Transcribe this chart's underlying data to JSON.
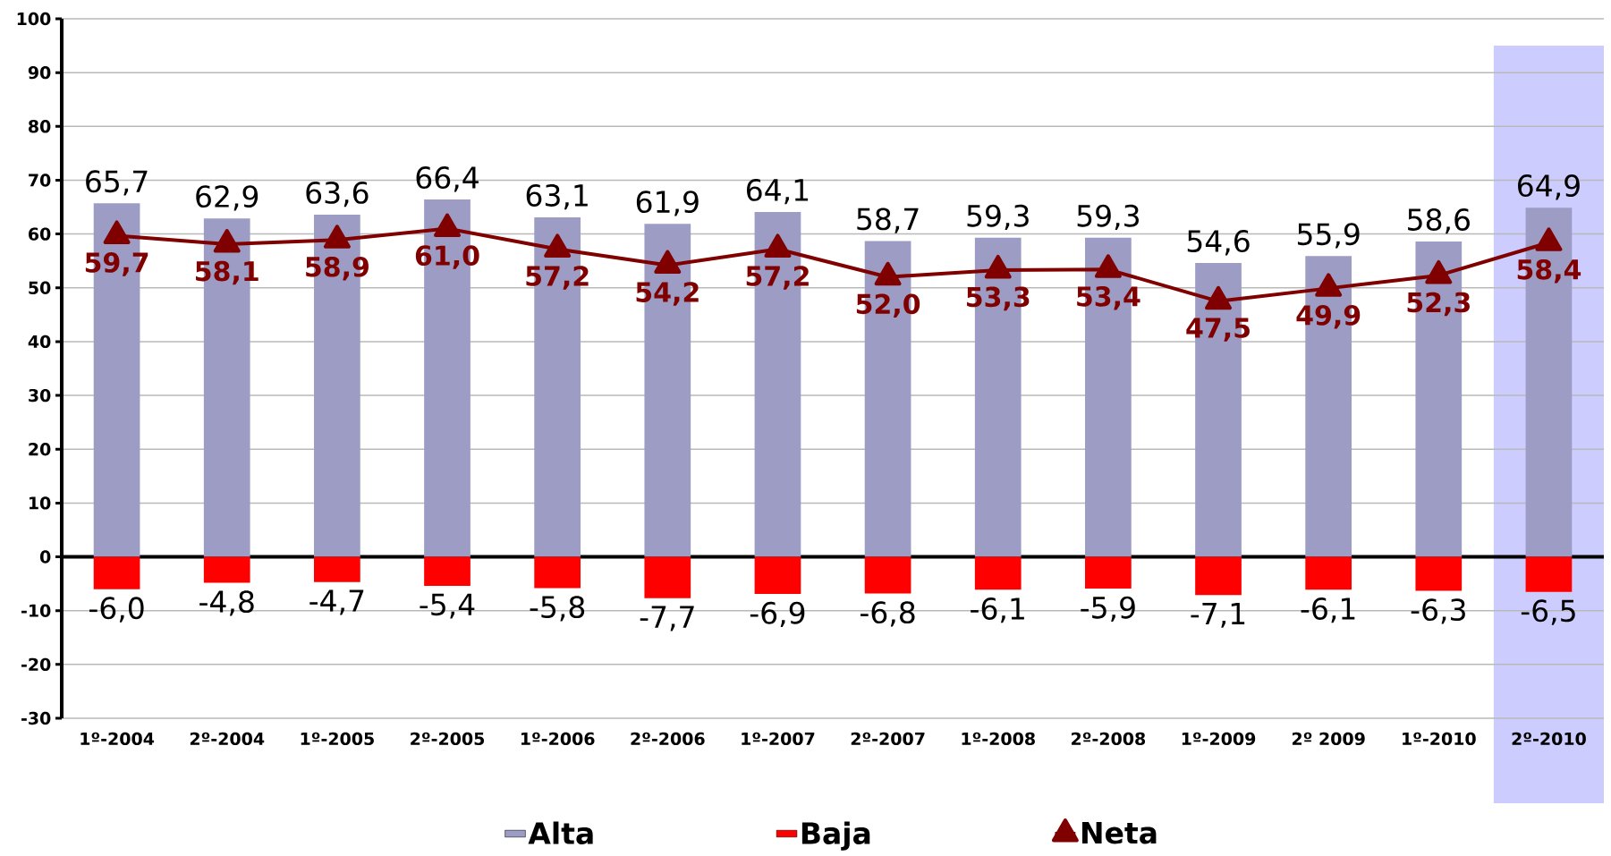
{
  "chart_data": {
    "type": "bar",
    "categories": [
      "1º-2004",
      "2º-2004",
      "1º-2005",
      "2º-2005",
      "1º-2006",
      "2º-2006",
      "1º-2007",
      "2º-2007",
      "1º-2008",
      "2º-2008",
      "1º-2009",
      "2º 2009",
      "1º-2010",
      "2º-2010"
    ],
    "series": [
      {
        "name": "Alta",
        "color": "#9c9cc4",
        "values": [
          65.7,
          62.9,
          63.6,
          66.4,
          63.1,
          61.9,
          64.1,
          58.7,
          59.3,
          59.3,
          54.6,
          55.9,
          58.6,
          64.9
        ],
        "value_labels": [
          "65,7",
          "62,9",
          "63,6",
          "66,4",
          "63,1",
          "61,9",
          "64,1",
          "58,7",
          "59,3",
          "59,3",
          "54,6",
          "55,9",
          "58,6",
          "64,9"
        ]
      },
      {
        "name": "Baja",
        "color": "#ff0000",
        "values": [
          -6.0,
          -4.8,
          -4.7,
          -5.4,
          -5.8,
          -7.7,
          -6.9,
          -6.8,
          -6.1,
          -5.9,
          -7.1,
          -6.1,
          -6.3,
          -6.5
        ],
        "value_labels": [
          "-6,0",
          "-4,8",
          "-4,7",
          "-5,4",
          "-5,8",
          "-7,7",
          "-6,9",
          "-6,8",
          "-6,1",
          "-5,9",
          "-7,1",
          "-6,1",
          "-6,3",
          "-6,5"
        ]
      },
      {
        "name": "Neta",
        "type": "line",
        "color": "#800000",
        "marker": "triangle",
        "line_style": "solid",
        "values": [
          59.7,
          58.1,
          58.9,
          61.0,
          57.2,
          54.2,
          57.2,
          52.0,
          53.3,
          53.4,
          47.5,
          49.9,
          52.3,
          58.4
        ],
        "value_labels": [
          "59,7",
          "58,1",
          "58,9",
          "61,0",
          "57,2",
          "54,2",
          "57,2",
          "52,0",
          "53,3",
          "53,4",
          "47,5",
          "49,9",
          "52,3",
          "58,4"
        ]
      }
    ],
    "ylim": [
      -30,
      100
    ],
    "yticks": [
      -30,
      -20,
      -10,
      0,
      10,
      20,
      30,
      40,
      50,
      60,
      70,
      80,
      90,
      100
    ],
    "stacked": true,
    "grid": "y",
    "legend": "bottom",
    "bands": [
      {
        "axis": "x",
        "from": "2º-2010",
        "to": "2º-2010",
        "color": "#ccccff"
      }
    ]
  }
}
